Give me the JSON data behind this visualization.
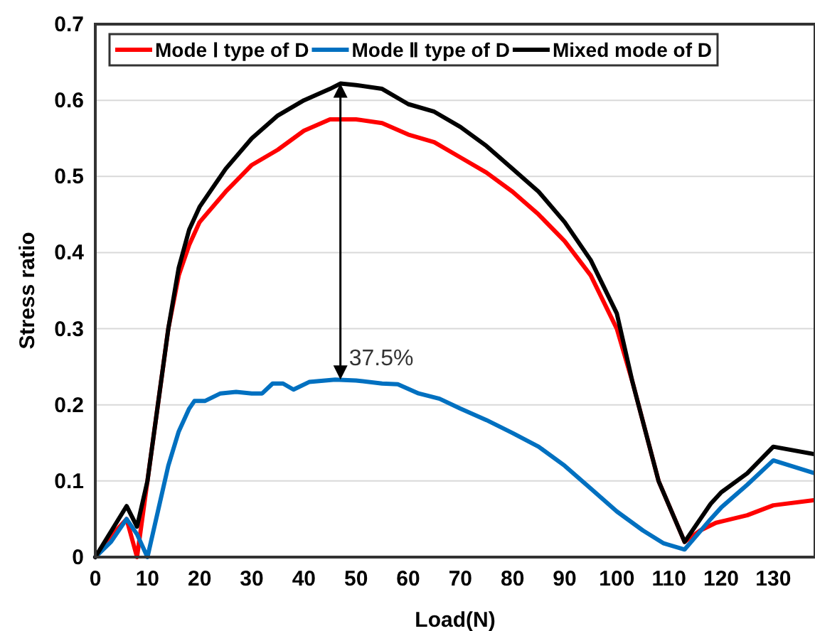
{
  "chart_data": {
    "type": "line",
    "xlabel": "Load(N)",
    "ylabel": "Stress ratio",
    "xlim": [
      0,
      138
    ],
    "xticks": [
      0,
      10,
      20,
      30,
      40,
      50,
      60,
      70,
      80,
      90,
      100,
      110,
      120,
      130
    ],
    "ylim": [
      0,
      0.7
    ],
    "yticks": [
      0,
      0.1,
      0.2,
      0.3,
      0.4,
      0.5,
      0.6,
      0.7
    ],
    "grid": "y",
    "legend": "top",
    "marker": "none",
    "line_style": "solid",
    "series": [
      {
        "name": "Mode Ⅰ type of D",
        "color": "#ff0000",
        "x": [
          0,
          2,
          6,
          8,
          10,
          12,
          14,
          16,
          18,
          20,
          25,
          30,
          35,
          40,
          45,
          50,
          55,
          60,
          65,
          70,
          75,
          80,
          85,
          90,
          95,
          100,
          103,
          108,
          113,
          116,
          119,
          125,
          130,
          138
        ],
        "values": [
          0,
          0.02,
          0.05,
          0.0,
          0.1,
          0.2,
          0.3,
          0.37,
          0.41,
          0.44,
          0.48,
          0.515,
          0.535,
          0.56,
          0.575,
          0.575,
          0.57,
          0.555,
          0.545,
          0.525,
          0.505,
          0.48,
          0.45,
          0.415,
          0.37,
          0.3,
          0.23,
          0.1,
          0.02,
          0.035,
          0.045,
          0.055,
          0.068,
          0.075
        ]
      },
      {
        "name": "Mode Ⅱ type of D",
        "color": "#0070c0",
        "x": [
          0,
          3,
          6,
          8,
          10,
          12,
          14,
          16,
          18,
          19,
          21,
          24,
          27,
          30,
          32,
          34,
          36,
          38,
          41,
          46,
          50,
          55,
          58,
          62,
          66,
          70,
          75,
          80,
          85,
          90,
          95,
          100,
          105,
          109,
          113,
          118,
          120,
          125,
          130,
          138
        ],
        "values": [
          0,
          0.02,
          0.05,
          0.03,
          0.0,
          0.06,
          0.12,
          0.165,
          0.195,
          0.205,
          0.205,
          0.215,
          0.217,
          0.215,
          0.215,
          0.228,
          0.228,
          0.22,
          0.23,
          0.233,
          0.232,
          0.228,
          0.227,
          0.215,
          0.208,
          0.195,
          0.18,
          0.163,
          0.145,
          0.12,
          0.09,
          0.06,
          0.035,
          0.018,
          0.01,
          0.05,
          0.065,
          0.095,
          0.127,
          0.11
        ]
      },
      {
        "name": "Mixed mode of D",
        "color": "#000000",
        "x": [
          0,
          6,
          8,
          10,
          12,
          14,
          16,
          18,
          20,
          25,
          30,
          35,
          40,
          45,
          47,
          50,
          55,
          60,
          65,
          70,
          75,
          80,
          85,
          90,
          95,
          100,
          103,
          108,
          113,
          118,
          120,
          125,
          130,
          138
        ],
        "values": [
          0,
          0.067,
          0.04,
          0.1,
          0.2,
          0.3,
          0.38,
          0.43,
          0.46,
          0.51,
          0.55,
          0.58,
          0.6,
          0.615,
          0.622,
          0.62,
          0.615,
          0.595,
          0.585,
          0.565,
          0.54,
          0.51,
          0.48,
          0.44,
          0.39,
          0.32,
          0.23,
          0.1,
          0.02,
          0.07,
          0.085,
          0.11,
          0.145,
          0.135
        ]
      }
    ],
    "annotations": [
      {
        "text": "37.5%",
        "x": 47,
        "y": 0.233
      }
    ]
  }
}
